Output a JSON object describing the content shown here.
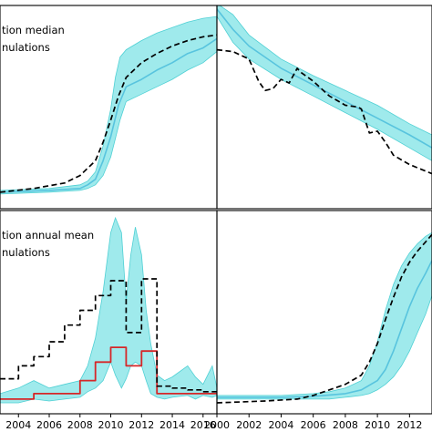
{
  "chart_data": [
    {
      "id": "top-left",
      "type": "line",
      "legend": [
        "tion median",
        "nulations"
      ],
      "x_range": [
        2002.8,
        2016.9
      ],
      "ylim": [
        0,
        1
      ],
      "xticks": [],
      "band": {
        "x": [
          2002.8,
          2006,
          2008,
          2008.5,
          2009,
          2009.5,
          2010,
          2010.3,
          2010.6,
          2011,
          2012,
          2013,
          2014,
          2015,
          2016,
          2016.9
        ],
        "lower": [
          0.02,
          0.03,
          0.04,
          0.05,
          0.07,
          0.12,
          0.22,
          0.32,
          0.42,
          0.52,
          0.56,
          0.6,
          0.64,
          0.69,
          0.73,
          0.79
        ],
        "upper": [
          0.04,
          0.05,
          0.07,
          0.09,
          0.14,
          0.28,
          0.48,
          0.65,
          0.76,
          0.8,
          0.85,
          0.89,
          0.92,
          0.95,
          0.97,
          0.98
        ]
      },
      "median": {
        "x": [
          2002.8,
          2006,
          2008,
          2008.5,
          2009,
          2009.5,
          2010,
          2010.5,
          2011,
          2012,
          2013,
          2014,
          2015,
          2016,
          2016.9
        ],
        "y": [
          0.03,
          0.04,
          0.05,
          0.07,
          0.1,
          0.2,
          0.33,
          0.5,
          0.6,
          0.64,
          0.69,
          0.73,
          0.78,
          0.81,
          0.86
        ]
      },
      "observed": {
        "x": [
          2002.8,
          2005,
          2007,
          2008,
          2009,
          2009.5,
          2010,
          2010.5,
          2011,
          2012,
          2013,
          2014,
          2015,
          2016,
          2016.9
        ],
        "y": [
          0.03,
          0.05,
          0.08,
          0.12,
          0.2,
          0.3,
          0.42,
          0.55,
          0.65,
          0.73,
          0.78,
          0.82,
          0.85,
          0.87,
          0.88
        ]
      }
    },
    {
      "id": "top-right",
      "type": "line",
      "legend": [],
      "x_range": [
        2000,
        2013.4
      ],
      "ylim": [
        0,
        1
      ],
      "xticks": [],
      "band": {
        "x": [
          2000,
          2001,
          2002,
          2004,
          2006,
          2008,
          2010,
          2012,
          2013.4
        ],
        "lower": [
          0.98,
          0.84,
          0.75,
          0.64,
          0.55,
          0.46,
          0.37,
          0.27,
          0.2
        ],
        "upper": [
          1.05,
          0.99,
          0.88,
          0.75,
          0.66,
          0.58,
          0.5,
          0.4,
          0.34
        ]
      },
      "median": {
        "x": [
          2000,
          2001,
          2002,
          2004,
          2006,
          2008,
          2010,
          2012,
          2013.4
        ],
        "y": [
          1.02,
          0.91,
          0.82,
          0.7,
          0.61,
          0.52,
          0.43,
          0.34,
          0.27
        ]
      },
      "observed": {
        "x": [
          2000,
          2001,
          2002,
          2002.6,
          2003,
          2003.5,
          2004,
          2004.5,
          2005,
          2005.2,
          2006,
          2007,
          2008,
          2008.8,
          2009,
          2009.5,
          2010,
          2010.5,
          2011,
          2012,
          2013.4
        ],
        "y": [
          0.8,
          0.79,
          0.75,
          0.63,
          0.58,
          0.59,
          0.64,
          0.62,
          0.7,
          0.68,
          0.63,
          0.55,
          0.5,
          0.49,
          0.48,
          0.35,
          0.36,
          0.3,
          0.23,
          0.18,
          0.13
        ]
      }
    },
    {
      "id": "bottom-left",
      "type": "line",
      "legend": [
        "tion annual mean",
        "nulations"
      ],
      "x_range": [
        2002.8,
        2016.9
      ],
      "ylim": [
        0,
        1
      ],
      "xticks": [
        "2004",
        "2006",
        "2008",
        "2010",
        "2012",
        "2014",
        "2016"
      ],
      "band": {
        "x": [
          2002.8,
          2004,
          2005,
          2006,
          2007,
          2008,
          2008.5,
          2009,
          2009.5,
          2010,
          2010.3,
          2010.7,
          2011,
          2011.3,
          2011.6,
          2012,
          2012.3,
          2012.6,
          2013,
          2013.5,
          2014,
          2015,
          2015.5,
          2016,
          2016.6,
          2016.9
        ],
        "lower": [
          0.0,
          0.0,
          0.02,
          0.01,
          0.02,
          0.03,
          0.06,
          0.08,
          0.12,
          0.22,
          0.15,
          0.08,
          0.13,
          0.2,
          0.22,
          0.2,
          0.12,
          0.05,
          0.03,
          0.02,
          0.03,
          0.04,
          0.02,
          0.04,
          0.03,
          0.04
        ],
        "upper": [
          0.05,
          0.08,
          0.12,
          0.08,
          0.1,
          0.12,
          0.2,
          0.35,
          0.6,
          0.92,
          1.0,
          0.92,
          0.55,
          0.8,
          0.95,
          0.8,
          0.5,
          0.32,
          0.15,
          0.12,
          0.14,
          0.2,
          0.14,
          0.1,
          0.2,
          0.08
        ]
      },
      "observed": {
        "x": [
          2002.8,
          2004,
          2004,
          2005,
          2005,
          2006,
          2006,
          2007,
          2007,
          2008,
          2008,
          2009,
          2009,
          2010,
          2010,
          2011,
          2011,
          2012,
          2012,
          2013,
          2013,
          2014,
          2014,
          2015,
          2015,
          2016,
          2016,
          2016.9
        ],
        "y": [
          0.13,
          0.13,
          0.2,
          0.2,
          0.25,
          0.25,
          0.33,
          0.33,
          0.42,
          0.42,
          0.5,
          0.5,
          0.58,
          0.58,
          0.66,
          0.66,
          0.38,
          0.38,
          0.67,
          0.67,
          0.09,
          0.09,
          0.08,
          0.08,
          0.07,
          0.07,
          0.06,
          0.06
        ]
      },
      "annual_mean": {
        "x": [
          2002.8,
          2005,
          2005,
          2008,
          2008,
          2009,
          2009,
          2010,
          2010,
          2011,
          2011,
          2012,
          2012,
          2013,
          2013,
          2016.9
        ],
        "y": [
          0.02,
          0.02,
          0.05,
          0.05,
          0.12,
          0.12,
          0.22,
          0.22,
          0.3,
          0.3,
          0.2,
          0.2,
          0.28,
          0.28,
          0.05,
          0.05
        ]
      }
    },
    {
      "id": "bottom-right",
      "type": "line",
      "legend": [],
      "x_range": [
        2000,
        2013.4
      ],
      "ylim": [
        0,
        1
      ],
      "xticks": [
        "2000",
        "2002",
        "2004",
        "2006",
        "2008",
        "2010",
        "2012"
      ],
      "band": {
        "x": [
          2000,
          2004,
          2006,
          2007,
          2008,
          2009,
          2009.5,
          2010,
          2010.5,
          2011,
          2011.5,
          2012,
          2012.5,
          2013,
          2013.4
        ],
        "lower": [
          0.02,
          0.02,
          0.02,
          0.02,
          0.03,
          0.04,
          0.05,
          0.07,
          0.1,
          0.14,
          0.2,
          0.28,
          0.38,
          0.48,
          0.58
        ],
        "upper": [
          0.04,
          0.04,
          0.05,
          0.06,
          0.08,
          0.12,
          0.2,
          0.33,
          0.5,
          0.64,
          0.74,
          0.81,
          0.86,
          0.9,
          0.92
        ]
      },
      "median": {
        "x": [
          2000,
          2004,
          2006,
          2008,
          2009,
          2010,
          2010.5,
          2011,
          2011.5,
          2012,
          2012.5,
          2013,
          2013.4
        ],
        "y": [
          0.03,
          0.03,
          0.035,
          0.05,
          0.07,
          0.12,
          0.18,
          0.28,
          0.4,
          0.52,
          0.62,
          0.7,
          0.77
        ]
      },
      "observed": {
        "x": [
          2000,
          2003,
          2005,
          2006,
          2007,
          2008,
          2009,
          2009.5,
          2010,
          2010.5,
          2011,
          2011.5,
          2012,
          2012.5,
          2013,
          2013.4
        ],
        "y": [
          0.0,
          0.01,
          0.02,
          0.04,
          0.07,
          0.1,
          0.15,
          0.22,
          0.32,
          0.45,
          0.57,
          0.68,
          0.76,
          0.82,
          0.87,
          0.91
        ]
      }
    }
  ],
  "colors": {
    "band": "#7fe3e6",
    "band_edge": "#4fd0d4",
    "median": "#58c4de",
    "observed": "#000000",
    "annual_mean": "#d62728"
  }
}
